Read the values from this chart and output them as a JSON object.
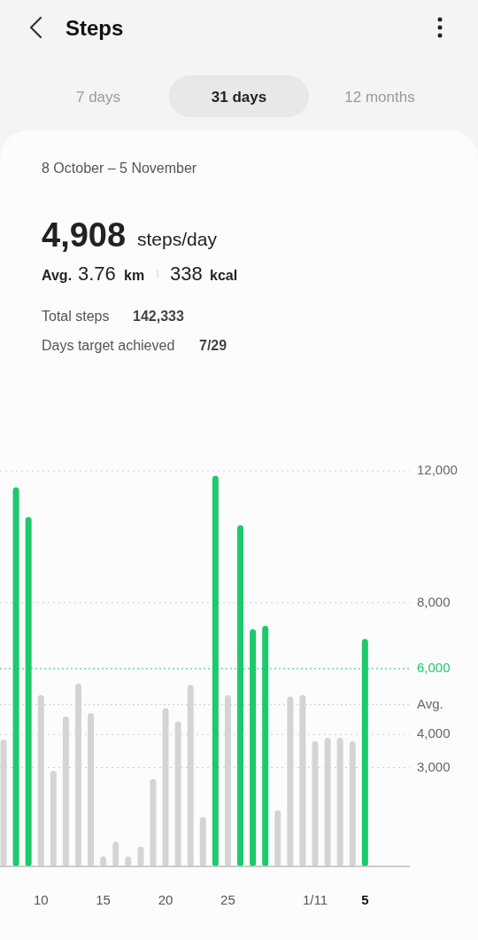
{
  "chart_data": {
    "type": "bar",
    "title": "Steps",
    "subtitle": "8 October – 5 November",
    "annotations": [
      "7 days",
      "31 days",
      "12 months",
      "4,908",
      "steps/day",
      "Avg.",
      "3.76",
      "km",
      "338",
      "kcal",
      "Total steps",
      "142,333",
      "Days target achieved",
      "7/29"
    ],
    "categories": [
      null,
      null,
      null,
      "10",
      null,
      null,
      null,
      null,
      "15",
      null,
      null,
      null,
      null,
      "20",
      null,
      null,
      null,
      null,
      "25",
      null,
      null,
      null,
      null,
      null,
      null,
      "1/11",
      null,
      null,
      null,
      "5"
    ],
    "values": [
      3850,
      11500,
      10600,
      5200,
      2900,
      4550,
      5550,
      4650,
      300,
      750,
      300,
      600,
      2650,
      4800,
      4400,
      5500,
      1500,
      11850,
      5200,
      10350,
      7200,
      7300,
      1700,
      5150,
      5200,
      3800,
      3900,
      3900,
      3800,
      6900
    ],
    "colors": [
      "#d4d4d4",
      "#1dc96d",
      "#1dc96d",
      "#d4d4d4",
      "#d4d4d4",
      "#d4d4d4",
      "#d4d4d4",
      "#d4d4d4",
      "#d4d4d4",
      "#d4d4d4",
      "#d4d4d4",
      "#d4d4d4",
      "#d4d4d4",
      "#d4d4d4",
      "#d4d4d4",
      "#d4d4d4",
      "#d4d4d4",
      "#1dc96d",
      "#d4d4d4",
      "#1dc96d",
      "#1dc96d",
      "#1dc96d",
      "#d4d4d4",
      "#d4d4d4",
      "#d4d4d4",
      "#d4d4d4",
      "#d4d4d4",
      "#d4d4d4",
      "#d4d4d4",
      "#1dc96d"
    ],
    "ylim": [
      0,
      12000
    ],
    "yticks": [
      {
        "value": 3000,
        "label": "3,000"
      },
      {
        "value": 4000,
        "label": "4,000"
      },
      {
        "value": 8000,
        "label": "8,000"
      },
      {
        "value": 12000,
        "label": "12,000"
      }
    ],
    "grid": "y",
    "ref_lines": [
      {
        "axis": "y",
        "value": 6000,
        "label": "6,000",
        "color": "#1dc96d",
        "line_style": "dotted"
      },
      {
        "axis": "y",
        "value": 4908,
        "label": "Avg.",
        "line_style": "dotted"
      }
    ]
  }
}
